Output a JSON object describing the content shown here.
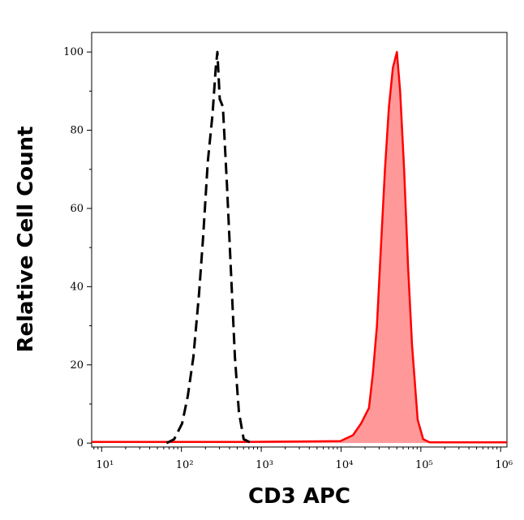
{
  "chart_data": {
    "type": "line",
    "x_label": "CD3 APC",
    "y_label": "Relative Cell Count",
    "x_log": true,
    "xlim": [
      7.5,
      1200000
    ],
    "ylim": [
      -1,
      105
    ],
    "xticks": [
      {
        "value": 10,
        "label": "10¹"
      },
      {
        "value": 100,
        "label": "10²"
      },
      {
        "value": 1000,
        "label": "10³"
      },
      {
        "value": 10000,
        "label": "10⁴"
      },
      {
        "value": 100000,
        "label": "10⁵"
      },
      {
        "value": 1000000,
        "label": "10⁶"
      }
    ],
    "yticks": [
      0,
      20,
      40,
      60,
      80,
      100
    ],
    "series": [
      {
        "color": "#ff0000",
        "fill": "#ff9999",
        "dashed": false,
        "x": [
          7.5,
          600,
          9800,
          14100,
          17800,
          22400,
          25100,
          28200,
          31600,
          35500,
          39800,
          44700,
          50100,
          55000,
          61700,
          69200,
          77600,
          91200,
          107000,
          129000,
          1200000
        ],
        "values": [
          0.3,
          0.3,
          0.5,
          2,
          5,
          9,
          18,
          30,
          50,
          70,
          86,
          96,
          100,
          90,
          70,
          45,
          25,
          6,
          1,
          0.2,
          0.2
        ]
      },
      {
        "color": "#000000",
        "dashed": true,
        "x": [
          65,
          81,
          102,
          120,
          141,
          166,
          186,
          214,
          245,
          269,
          282,
          302,
          331,
          372,
          417,
          468,
          525,
          603,
          759
        ],
        "values": [
          0,
          1,
          5,
          12,
          22,
          38,
          52,
          72,
          84,
          96,
          100,
          88,
          86,
          66,
          44,
          22,
          8,
          1,
          0
        ]
      }
    ]
  }
}
